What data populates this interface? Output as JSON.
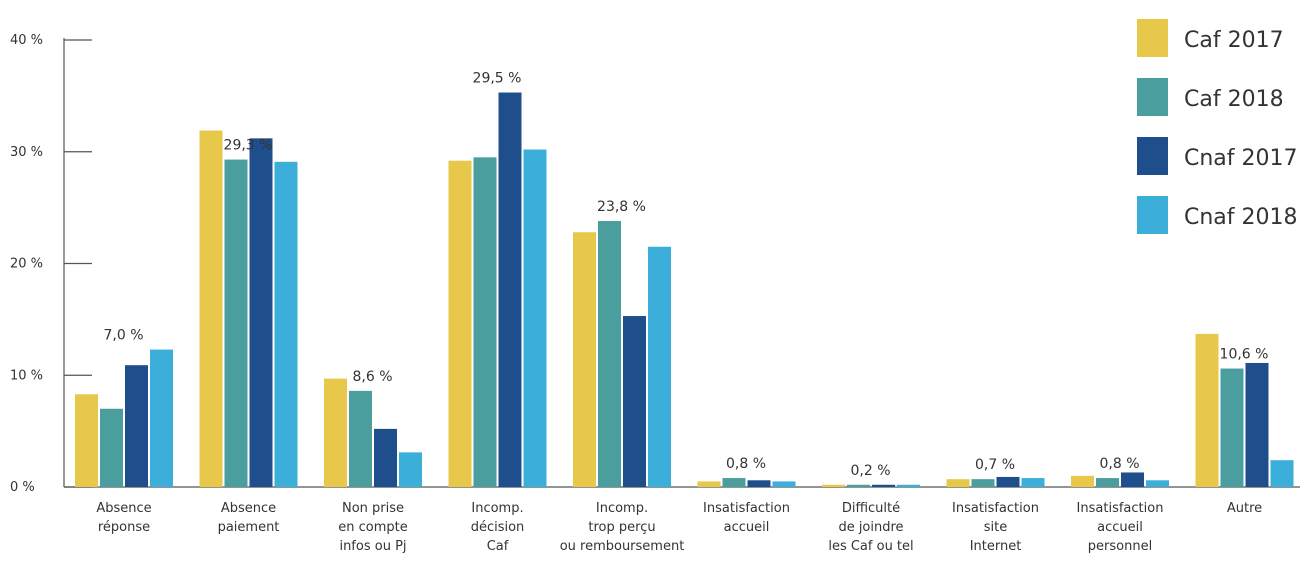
{
  "chart_data": {
    "type": "bar",
    "categories": [
      [
        "Absence",
        "réponse"
      ],
      [
        "Absence",
        "paiement"
      ],
      [
        "Non prise",
        "en compte",
        "infos ou Pj"
      ],
      [
        "Incomp.",
        "décision",
        "Caf"
      ],
      [
        "Incomp.",
        "trop perçu",
        "ou remboursement"
      ],
      [
        "Insatisfaction",
        "accueil"
      ],
      [
        "Difficulté",
        "de joindre",
        "les Caf ou tel"
      ],
      [
        "Insatisfaction",
        "site",
        "Internet"
      ],
      [
        "Insatisfaction",
        "accueil",
        "personnel"
      ],
      [
        "Autre"
      ]
    ],
    "series": [
      {
        "name": "Caf 2017",
        "color": "#E8C84A",
        "values": [
          8.3,
          31.9,
          9.7,
          29.2,
          22.8,
          0.5,
          0.2,
          0.7,
          1.0,
          13.7
        ]
      },
      {
        "name": "Caf 2018",
        "color": "#4A9E9E",
        "values": [
          7.0,
          29.3,
          8.6,
          29.5,
          23.8,
          0.8,
          0.2,
          0.7,
          0.8,
          10.6
        ]
      },
      {
        "name": "Cnaf 2017",
        "color": "#1F4E8C",
        "values": [
          10.9,
          31.2,
          5.2,
          35.3,
          15.3,
          0.6,
          0.2,
          0.9,
          1.3,
          11.1
        ]
      },
      {
        "name": "Cnaf 2018",
        "color": "#3BAFDA",
        "values": [
          12.3,
          29.1,
          3.1,
          30.2,
          21.5,
          0.5,
          0.2,
          0.8,
          0.6,
          2.4
        ]
      }
    ],
    "data_labels": [
      "7,0 %",
      "29,3 %",
      "8,6 %",
      "29,5 %",
      "23,8 %",
      "0,8 %",
      "0,2 %",
      "0,7 %",
      "0,8 %",
      "10,6 %"
    ],
    "data_label_series": "Caf 2018",
    "y_ticks": [
      0,
      10,
      20,
      30,
      40
    ],
    "y_tick_labels": [
      "0 %",
      "10 %",
      "20 %",
      "30 %",
      "40 %"
    ],
    "ylim": [
      0,
      40
    ],
    "title": "",
    "xlabel": "",
    "ylabel": "",
    "grid": false,
    "legend_position": "top-right"
  }
}
